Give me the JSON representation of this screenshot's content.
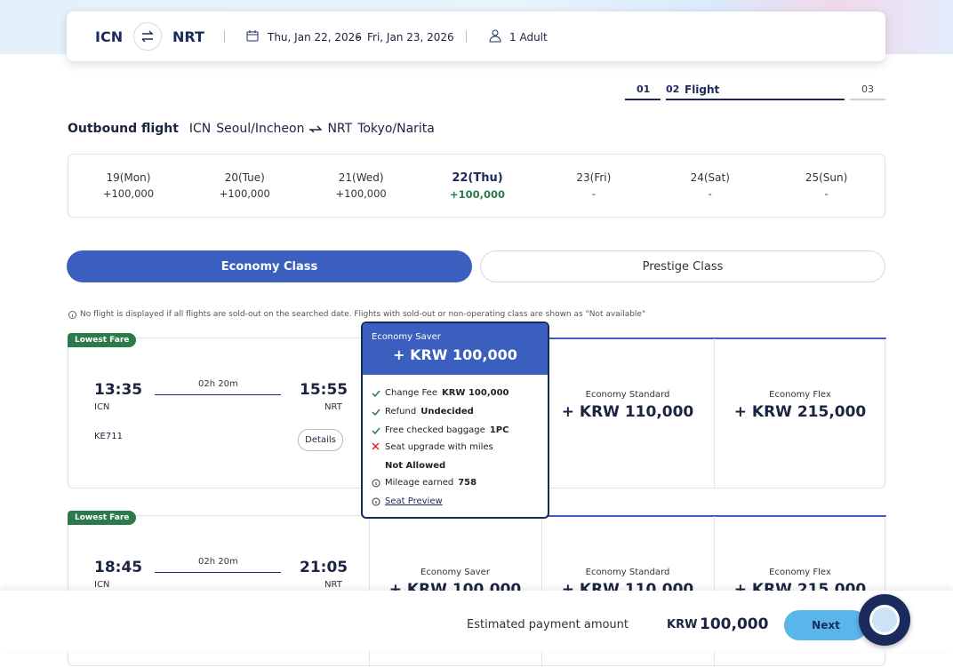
{
  "search": {
    "origin": "ICN",
    "destination": "NRT",
    "depart": "Thu, Jan 22, 2026",
    "separator": "-",
    "return": "Fri, Jan 23, 2026",
    "passengers": "1 Adult"
  },
  "steps": [
    {
      "num": "01"
    },
    {
      "num": "02",
      "label": "Flight"
    },
    {
      "num": "03"
    }
  ],
  "outbound": {
    "heading": "Outbound flight",
    "origin": "ICN",
    "origin_city": "Seoul/Incheon",
    "destination": "NRT",
    "destination_city": "Tokyo/Narita"
  },
  "dates": [
    {
      "day": "19(Mon)",
      "price": "+100,000"
    },
    {
      "day": "20(Tue)",
      "price": "+100,000"
    },
    {
      "day": "21(Wed)",
      "price": "+100,000"
    },
    {
      "day": "22(Thu)",
      "price": "+100,000",
      "selected": true
    },
    {
      "day": "23(Fri)",
      "price": "-"
    },
    {
      "day": "24(Sat)",
      "price": "-"
    },
    {
      "day": "25(Sun)",
      "price": "-"
    }
  ],
  "classes": [
    "Economy Class",
    "Prestige Class"
  ],
  "notice": "No flight is displayed if all flights are sold-out on the searched date. Flights with sold-out or non-operating class are shown as \"Not available\"",
  "flights": [
    {
      "badge": "Lowest Fare",
      "depart_time": "13:35",
      "depart_code": "ICN",
      "duration": "02h 20m",
      "arrive_time": "15:55",
      "arrive_code": "NRT",
      "flight_no": "KE711",
      "details": "Details",
      "fares": [
        {
          "name": "Economy Standard",
          "price": "+ KRW 110,000"
        },
        {
          "name": "Economy Flex",
          "price": "+ KRW 215,000"
        }
      ]
    },
    {
      "badge": "Lowest Fare",
      "depart_time": "18:45",
      "depart_code": "ICN",
      "duration": "02h 20m",
      "arrive_time": "21:05",
      "arrive_code": "NRT",
      "fares": [
        {
          "name": "Economy Saver",
          "price": "+ KRW 100,000"
        },
        {
          "name": "Economy Standard",
          "price": "+ KRW 110,000"
        },
        {
          "name": "Economy Flex",
          "price": "+ KRW 215,000"
        }
      ]
    }
  ],
  "fare_popup": {
    "name": "Economy Saver",
    "price": "+ KRW 100,000",
    "features": [
      {
        "label": "Change Fee",
        "value": "KRW 100,000",
        "icon": "check"
      },
      {
        "label": "Refund",
        "value": "Undecided",
        "icon": "check"
      },
      {
        "label": "Free checked baggage",
        "value": "1PC",
        "icon": "check"
      },
      {
        "label": "Seat upgrade with miles",
        "value": "Not Allowed",
        "icon": "cross"
      },
      {
        "label": "Mileage earned",
        "value": "758",
        "icon": "info"
      }
    ],
    "seat_preview": "Seat Preview"
  },
  "footer": {
    "label": "Estimated payment amount",
    "currency": "KRW",
    "amount": "100,000",
    "next": "Next"
  }
}
